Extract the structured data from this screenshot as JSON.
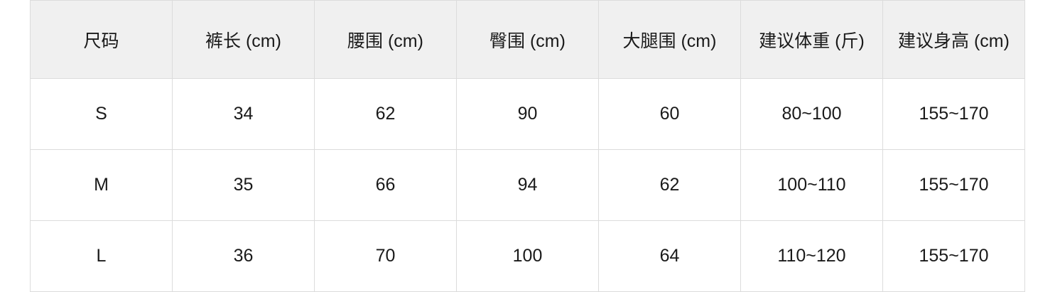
{
  "headers": [
    "尺码",
    "裤长 (cm)",
    "腰围 (cm)",
    "臀围 (cm)",
    "大腿围 (cm)",
    "建议体重 (斤)",
    "建议身高 (cm)"
  ],
  "rows": [
    [
      "S",
      "34",
      "62",
      "90",
      "60",
      "80~100",
      "155~170"
    ],
    [
      "M",
      "35",
      "66",
      "94",
      "62",
      "100~110",
      "155~170"
    ],
    [
      "L",
      "36",
      "70",
      "100",
      "64",
      "110~120",
      "155~170"
    ]
  ]
}
